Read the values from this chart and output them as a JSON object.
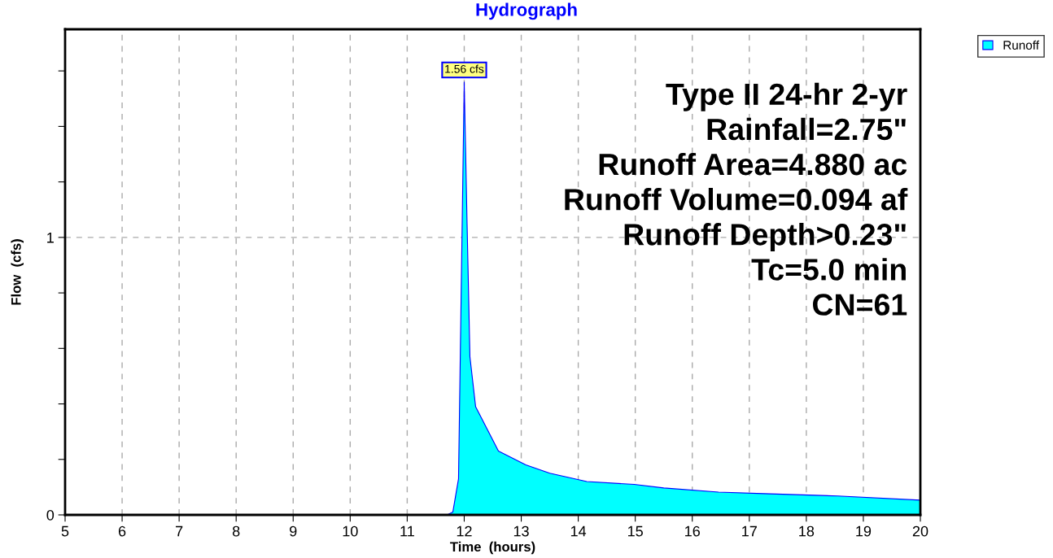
{
  "chart_data": {
    "type": "area",
    "title": "Hydrograph",
    "xlabel": "Time  (hours)",
    "ylabel": "Flow  (cfs)",
    "x": [
      5,
      11.7,
      11.8,
      11.9,
      12.0,
      12.05,
      12.1,
      12.2,
      12.6,
      13.08,
      13.5,
      14.15,
      14.98,
      15.5,
      16.46,
      17.36,
      18.55,
      20
    ],
    "series": [
      {
        "name": "Runoff",
        "color": "#00ffff",
        "values": [
          0,
          0,
          0.01,
          0.13,
          1.56,
          1.05,
          0.57,
          0.39,
          0.23,
          0.18,
          0.15,
          0.12,
          0.11,
          0.097,
          0.082,
          0.076,
          0.068,
          0.053
        ]
      }
    ],
    "xlim": [
      5,
      20
    ],
    "ylim": [
      0,
      1.75
    ],
    "xticks": [
      5,
      6,
      7,
      8,
      9,
      10,
      11,
      12,
      13,
      14,
      15,
      16,
      17,
      18,
      19,
      20
    ],
    "yticks": [
      0,
      {
        "value": 0.2,
        "label": null
      },
      {
        "value": 0.4,
        "label": null
      },
      {
        "value": 0.6,
        "label": null
      },
      {
        "value": 0.8,
        "label": null
      },
      1,
      {
        "value": 1.2,
        "label": null
      },
      {
        "value": 1.4,
        "label": null
      },
      {
        "value": 1.6,
        "label": null
      }
    ],
    "grid": true,
    "legend": "top right",
    "annotations": [
      {
        "text": "1.56 cfs",
        "x": 12.0,
        "y": 1.56
      },
      "Type II 24-hr 2-yr\nRainfall=2.75\"\nRunoff Area=4.880 ac\nRunoff Volume=0.094 af\nRunoff Depth>0.23\"\nTc=5.0 min\nCN=61"
    ]
  }
}
